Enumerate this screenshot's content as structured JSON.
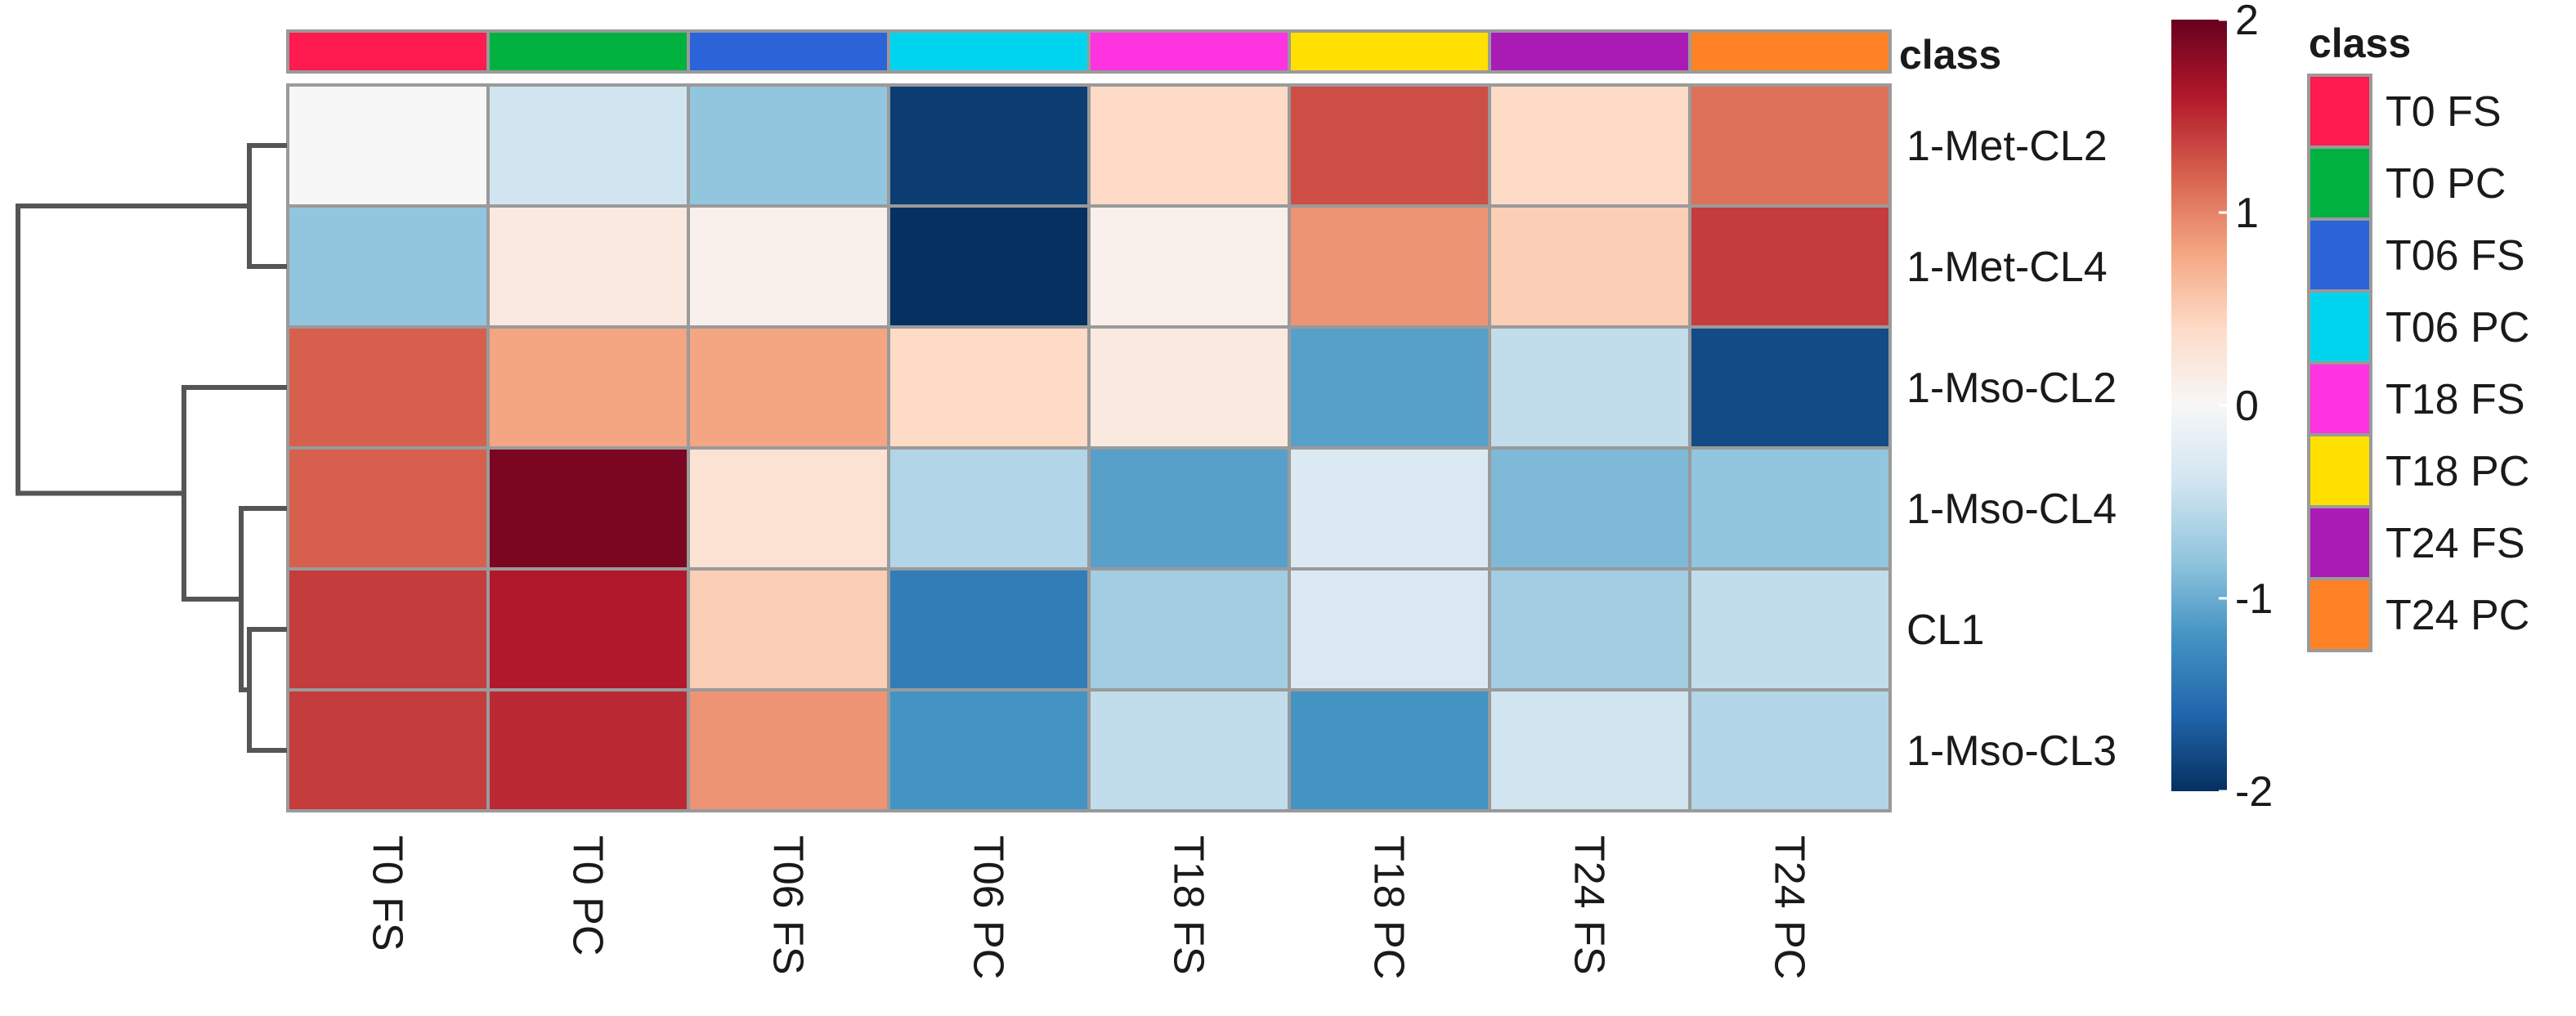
{
  "chart_data": {
    "type": "heatmap",
    "columns": [
      "T0 FS",
      "T0 PC",
      "T06 FS",
      "T06 PC",
      "T18 FS",
      "T18 PC",
      "T24 FS",
      "T24 PC"
    ],
    "rows": [
      "1-Met-CL2",
      "1-Met-CL4",
      "1-Mso-CL2",
      "1-Mso-CL4",
      "CL1",
      "1-Mso-CL3"
    ],
    "values": [
      [
        0.0,
        -0.4,
        -0.8,
        -1.9,
        0.4,
        1.3,
        0.4,
        1.1
      ],
      [
        -0.8,
        0.2,
        0.1,
        -2.1,
        0.1,
        0.9,
        0.5,
        1.4
      ],
      [
        1.2,
        0.8,
        0.8,
        0.4,
        0.2,
        -1.1,
        -0.5,
        -1.8
      ],
      [
        1.2,
        1.9,
        0.3,
        -0.6,
        -1.1,
        -0.3,
        -0.9,
        -0.8
      ],
      [
        1.4,
        1.6,
        0.5,
        -1.4,
        -0.7,
        -0.3,
        -0.7,
        -0.5
      ],
      [
        1.4,
        1.5,
        0.9,
        -1.2,
        -0.5,
        -1.2,
        -0.4,
        -0.6
      ]
    ],
    "color_scale": {
      "min": -2,
      "max": 2,
      "ticks": [
        "2",
        "1",
        "0",
        "-1",
        "-2"
      ],
      "colors": [
        "#053061",
        "#2166ac",
        "#4393c3",
        "#92c5de",
        "#d1e5f0",
        "#f7f7f7",
        "#fddbc7",
        "#f4a582",
        "#d6604d",
        "#b2182b",
        "#67001f"
      ]
    },
    "annotation": {
      "label": "class",
      "legend_title": "class",
      "legend_placement": "right",
      "entries": [
        {
          "name": "T0 FS",
          "color": "#ff1a4f"
        },
        {
          "name": "T0 PC",
          "color": "#00b140"
        },
        {
          "name": "T06 FS",
          "color": "#2b63d9"
        },
        {
          "name": "T06 PC",
          "color": "#00d5f0"
        },
        {
          "name": "T18 FS",
          "color": "#ff33e0"
        },
        {
          "name": "T18 PC",
          "color": "#ffe000"
        },
        {
          "name": "T24 FS",
          "color": "#aa1ab5"
        },
        {
          "name": "T24 PC",
          "color": "#ff8326"
        }
      ]
    },
    "row_dendrogram": true
  }
}
